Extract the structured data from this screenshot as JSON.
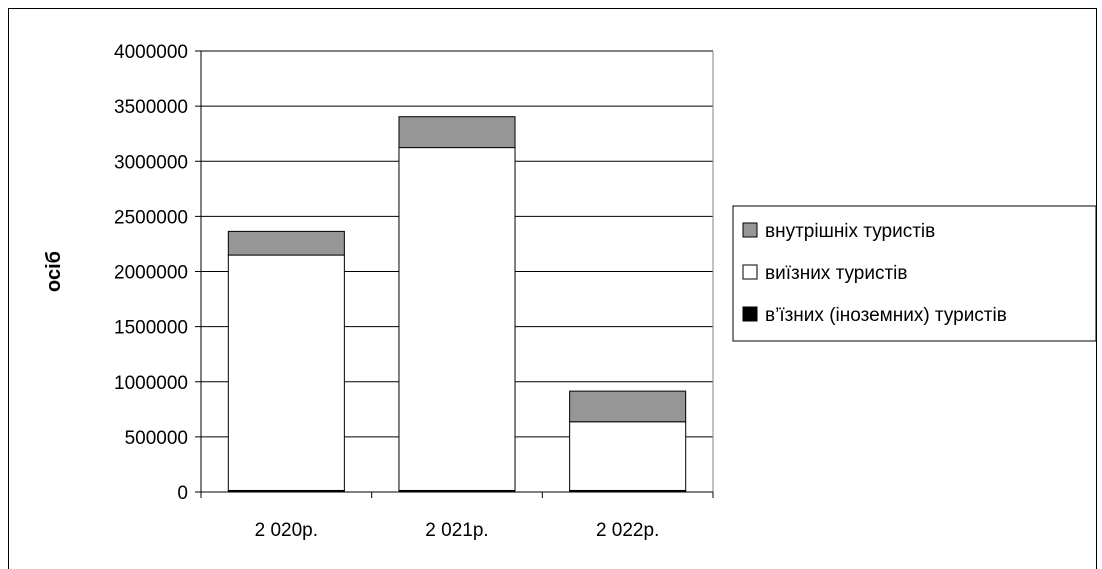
{
  "chart_data": {
    "type": "bar",
    "stacked": true,
    "categories": [
      "2 020р.",
      "2 021р.",
      "2 022р."
    ],
    "series": [
      {
        "name": "в’їзних (іноземних) туристів",
        "values": [
          14000,
          14000,
          14000
        ],
        "color": "#000000"
      },
      {
        "name": "виїзних туристів",
        "values": [
          2135000,
          3110000,
          623000
        ],
        "color": "#ffffff"
      },
      {
        "name": "внутрішніх туристів",
        "values": [
          215000,
          280000,
          278000
        ],
        "color": "#969696"
      }
    ],
    "legend_order": [
      "внутрішніх туристів",
      "виїзних туристів",
      "в’їзних (іноземних) туристів"
    ],
    "ylabel": "осіб",
    "xlabel": "",
    "title": "",
    "ylim": [
      0,
      4000000
    ],
    "yticks": [
      "0",
      "500000",
      "1000000",
      "1500000",
      "2000000",
      "2500000",
      "3000000",
      "3500000",
      "4000000"
    ],
    "grid": true,
    "legend_position": "right"
  }
}
